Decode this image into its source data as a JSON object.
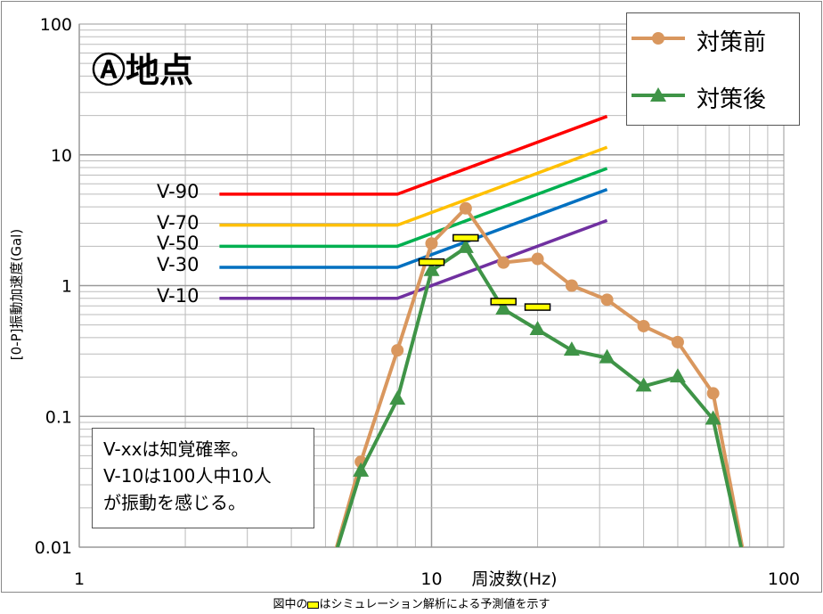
{
  "chart_data": {
    "type": "line",
    "title": "Ⓐ地点",
    "xlabel": "周波数(Hz)",
    "ylabel": "[0-P]振動加速度(Gal)",
    "xscale": "log",
    "yscale": "log",
    "xlim": [
      1,
      100
    ],
    "ylim": [
      0.01,
      100
    ],
    "x_ticks": [
      "1",
      "10",
      "100"
    ],
    "y_ticks": [
      "100",
      "10",
      "1",
      "0.1",
      "0.01"
    ],
    "grid": true,
    "legend_position": "top-right",
    "x": [
      5,
      6.3,
      8,
      10,
      12.5,
      16,
      20,
      25,
      31.5,
      40,
      50,
      63,
      80
    ],
    "series": [
      {
        "name": "対策前",
        "color": "#d9975e",
        "marker": "circle",
        "values": [
          0.005,
          0.045,
          0.32,
          2.1,
          3.9,
          1.5,
          1.6,
          1.0,
          0.78,
          0.49,
          0.37,
          0.15,
          0.005
        ]
      },
      {
        "name": "対策後",
        "color": "#3f9447",
        "marker": "triangle",
        "values": [
          0.005,
          0.038,
          0.135,
          1.3,
          1.95,
          0.66,
          0.46,
          0.32,
          0.28,
          0.17,
          0.2,
          0.095,
          0.005
        ]
      }
    ],
    "simulation": {
      "x": [
        10,
        12.5,
        16,
        20
      ],
      "values": [
        1.5,
        2.3,
        0.75,
        0.68
      ],
      "color": "#ffff00"
    },
    "perception_lines": [
      {
        "name": "V-90",
        "color": "#ff0000",
        "flat": 5.0
      },
      {
        "name": "V-70",
        "color": "#ffc000",
        "flat": 2.9
      },
      {
        "name": "V-50",
        "color": "#00b050",
        "flat": 2.0
      },
      {
        "name": "V-30",
        "color": "#0070c0",
        "flat": 1.38
      },
      {
        "name": "V-10",
        "color": "#7030a0",
        "flat": 0.8
      }
    ],
    "perception_range": {
      "start": 2.5,
      "knee": 8,
      "end": 31.5
    },
    "note": [
      "V-xxは知覚確率。",
      "V-10は100人中10人",
      "が振動を感じる。"
    ],
    "footer_pre": "図中の",
    "footer_post": "はシミュレーション解析による予測値を示す"
  }
}
